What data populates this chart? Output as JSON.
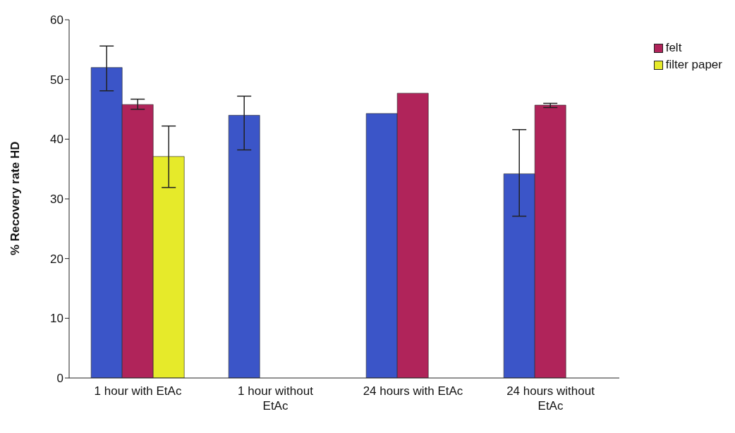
{
  "chart_data": {
    "type": "bar",
    "ylabel": "% Recovery rate HD",
    "categories": [
      "1 hour with EtAc",
      "1 hour without EtAc",
      "24 hours with EtAc",
      "24 hours without EtAc"
    ],
    "series": [
      {
        "color": "#3b55c8",
        "values": [
          52.0,
          44.0,
          44.3,
          34.2
        ],
        "errors": [
          [
            48.1,
            55.6
          ],
          [
            38.2,
            47.2
          ],
          null,
          [
            27.1,
            41.6
          ]
        ]
      },
      {
        "name": "felt",
        "color": "#b0245a",
        "values": [
          45.8,
          null,
          47.7,
          45.7
        ],
        "errors": [
          [
            45.0,
            46.7
          ],
          null,
          null,
          [
            45.3,
            46.0
          ]
        ]
      },
      {
        "name": "filter paper",
        "color": "#e6ea2a",
        "values": [
          37.1,
          null,
          null,
          null
        ],
        "errors": [
          [
            31.9,
            42.2
          ],
          null,
          null,
          null
        ]
      }
    ],
    "ylim": [
      0,
      60
    ],
    "yticks": [
      0,
      10,
      20,
      30,
      40,
      50,
      60
    ],
    "legend": "top right"
  }
}
